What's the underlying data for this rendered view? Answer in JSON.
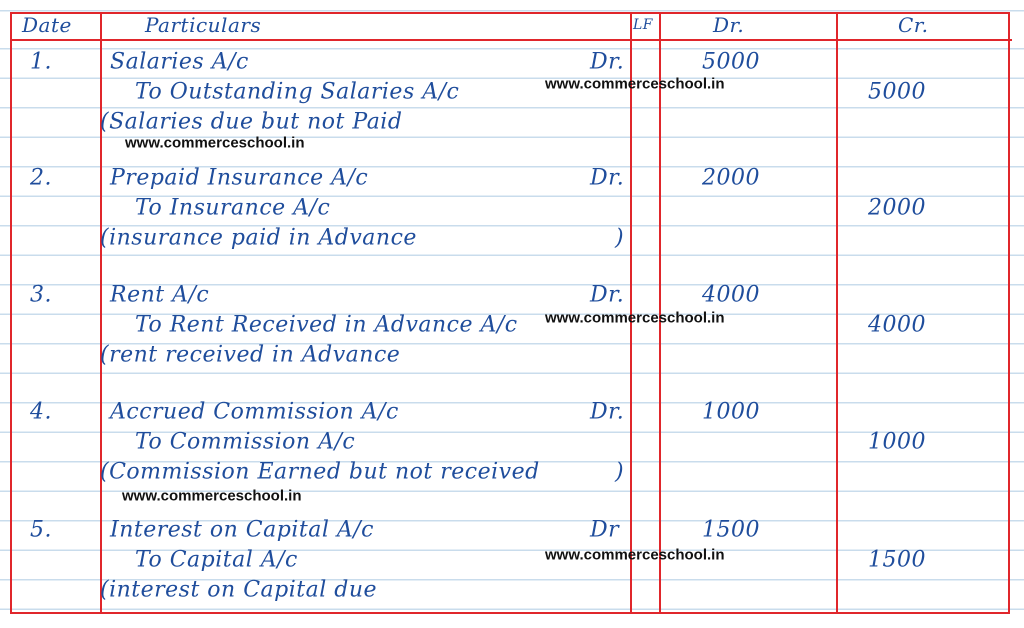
{
  "header": {
    "date": "Date",
    "particulars": "Particulars",
    "lf": "LF",
    "dr": "Dr.",
    "cr": "Cr."
  },
  "watermark": "www.commerceschool.in",
  "entries": [
    {
      "no": "1.",
      "debit_account": "Salaries A/c",
      "dr_mark": "Dr.",
      "debit_amount": "5000",
      "credit_account": "To Outstanding Salaries A/c",
      "credit_amount": "5000",
      "narration": "(Salaries due but not Paid",
      "narration_close": ""
    },
    {
      "no": "2.",
      "debit_account": "Prepaid Insurance A/c",
      "dr_mark": "Dr.",
      "debit_amount": "2000",
      "credit_account": "To Insurance A/c",
      "credit_amount": "2000",
      "narration": "(insurance paid in Advance",
      "narration_close": ")"
    },
    {
      "no": "3.",
      "debit_account": "Rent A/c",
      "dr_mark": "Dr.",
      "debit_amount": "4000",
      "credit_account": "To Rent Received in Advance A/c",
      "credit_amount": "4000",
      "narration": "(rent received in Advance",
      "narration_close": ""
    },
    {
      "no": "4.",
      "debit_account": "Accrued Commission A/c",
      "dr_mark": "Dr.",
      "debit_amount": "1000",
      "credit_account": "To Commission A/c",
      "credit_amount": "1000",
      "narration": "(Commission Earned but not received",
      "narration_close": ")"
    },
    {
      "no": "5.",
      "debit_account": "Interest on Capital A/c",
      "dr_mark": "Dr",
      "debit_amount": "1500",
      "credit_account": "To Capital A/c",
      "credit_amount": "1500",
      "narration": "(interest on Capital due",
      "narration_close": ""
    }
  ]
}
